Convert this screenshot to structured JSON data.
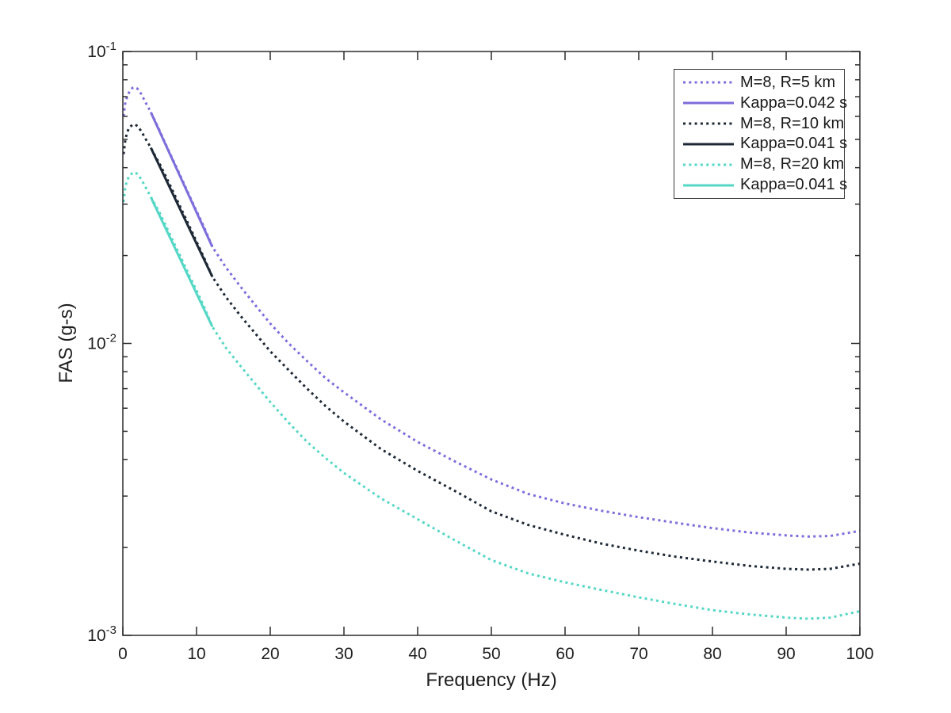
{
  "figure": {
    "background": "#ffffff",
    "axis_color": "#2b2b2b",
    "text_color": "#1f1f1f"
  },
  "chart_data": {
    "type": "line",
    "title": "",
    "xlabel": "Frequency (Hz)",
    "ylabel": "FAS (g-s)",
    "grid": "off",
    "x_axis": {
      "scale": "linear",
      "min": 0,
      "max": 100,
      "ticks": [
        0,
        10,
        20,
        30,
        40,
        50,
        60,
        70,
        80,
        90,
        100
      ]
    },
    "y_axis": {
      "scale": "log",
      "min": 0.001,
      "max": 0.1,
      "major_ticks": [
        {
          "value": 0.1,
          "base": "10",
          "exp": "-1"
        },
        {
          "value": 0.01,
          "base": "10",
          "exp": "-2"
        },
        {
          "value": 0.001,
          "base": "10",
          "exp": "-3"
        }
      ],
      "minor_tick_mantissas": [
        2,
        3,
        4,
        5,
        6,
        7,
        8,
        9
      ]
    },
    "legend": {
      "position": "northeast",
      "border": true
    },
    "series": [
      {
        "name": "M=8, R=5 km",
        "style": "dotted",
        "color": "#7d6edc",
        "x": [
          0.1,
          0.3,
          0.5,
          0.8,
          1,
          1.3,
          1.6,
          2,
          2.5,
          3,
          3.5,
          4,
          4.5,
          5,
          6,
          7,
          8,
          9,
          10,
          11,
          12.15,
          14,
          16,
          18,
          20,
          22.5,
          25,
          27.5,
          30,
          35,
          40,
          45,
          50,
          55,
          60,
          65,
          70,
          75,
          80,
          85,
          90,
          93,
          96,
          100
        ],
        "y": [
          0.06,
          0.066,
          0.069,
          0.072,
          0.0735,
          0.075,
          0.0755,
          0.0745,
          0.0715,
          0.0675,
          0.064,
          0.0605,
          0.057,
          0.0535,
          0.047,
          0.0415,
          0.0366,
          0.0322,
          0.0284,
          0.0251,
          0.0214,
          0.0182,
          0.0156,
          0.0135,
          0.0117,
          0.01,
          0.0087,
          0.0076,
          0.0068,
          0.0055,
          0.0046,
          0.00395,
          0.00342,
          0.00305,
          0.00283,
          0.00267,
          0.00254,
          0.00243,
          0.00233,
          0.00225,
          0.0022,
          0.00218,
          0.00219,
          0.00228
        ]
      },
      {
        "name": "Kappa=0.042 s",
        "style": "solid",
        "color": "#7d6edc",
        "x": [
          3.8,
          12.15
        ],
        "y": [
          0.0619,
          0.0214
        ]
      },
      {
        "name": "M=8, R=10 km",
        "style": "dotted",
        "color": "#1e2936",
        "x": [
          0.1,
          0.3,
          0.5,
          0.8,
          1,
          1.3,
          1.6,
          2,
          2.5,
          3,
          3.5,
          4,
          4.5,
          5,
          6,
          7,
          8,
          9,
          10,
          11,
          12.15,
          14,
          16,
          18,
          20,
          22.5,
          25,
          27.5,
          30,
          35,
          40,
          45,
          50,
          55,
          60,
          65,
          70,
          75,
          80,
          85,
          90,
          93,
          96,
          100
        ],
        "y": [
          0.0445,
          0.049,
          0.052,
          0.0545,
          0.0553,
          0.056,
          0.0563,
          0.0555,
          0.0533,
          0.0506,
          0.0482,
          0.0458,
          0.0434,
          0.0412,
          0.0366,
          0.0324,
          0.0286,
          0.0253,
          0.0223,
          0.0197,
          0.0169,
          0.0144,
          0.0124,
          0.0108,
          0.0094,
          0.0081,
          0.007,
          0.0061,
          0.0054,
          0.00435,
          0.00366,
          0.00313,
          0.00266,
          0.00239,
          0.00221,
          0.00206,
          0.00195,
          0.00186,
          0.00179,
          0.00173,
          0.00169,
          0.00168,
          0.00169,
          0.00176
        ]
      },
      {
        "name": "Kappa=0.041 s",
        "style": "solid",
        "color": "#1e2936",
        "x": [
          3.8,
          12.15
        ],
        "y": [
          0.0468,
          0.0169
        ]
      },
      {
        "name": "M=8, R=20 km",
        "style": "dotted",
        "color": "#55d7c5",
        "x": [
          0.1,
          0.3,
          0.5,
          0.8,
          1,
          1.3,
          1.6,
          2,
          2.5,
          3,
          3.5,
          4,
          4.5,
          5,
          6,
          7,
          8,
          9,
          10,
          11,
          12.15,
          14,
          16,
          18,
          20,
          22.5,
          25,
          27.5,
          30,
          35,
          40,
          45,
          50,
          55,
          60,
          65,
          70,
          75,
          80,
          85,
          90,
          93,
          96,
          100
        ],
        "y": [
          0.0305,
          0.0338,
          0.0357,
          0.0372,
          0.0378,
          0.0383,
          0.0386,
          0.038,
          0.0365,
          0.0346,
          0.0328,
          0.0311,
          0.0295,
          0.028,
          0.0248,
          0.0219,
          0.0194,
          0.0171,
          0.0152,
          0.0134,
          0.0114,
          0.00965,
          0.00835,
          0.00725,
          0.0063,
          0.00535,
          0.0046,
          0.00405,
          0.0036,
          0.00295,
          0.0025,
          0.00212,
          0.00181,
          0.00163,
          0.00152,
          0.00143,
          0.00135,
          0.00128,
          0.00122,
          0.00118,
          0.00115,
          0.00114,
          0.00115,
          0.00121
        ]
      },
      {
        "name": "Kappa=0.041 s",
        "style": "solid",
        "color": "#55d7c5",
        "x": [
          3.8,
          12.15
        ],
        "y": [
          0.0317,
          0.0114
        ]
      }
    ]
  }
}
